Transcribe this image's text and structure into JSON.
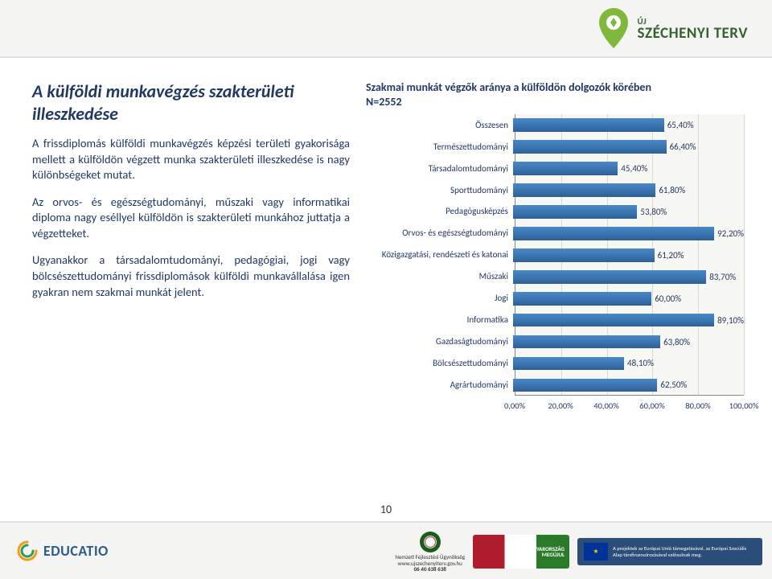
{
  "header": {
    "logo_uj": "ÚJ",
    "logo_main": "SZÉCHENYI TERV"
  },
  "left": {
    "title": "A külföldi munkavégzés szakterületi illeszkedése",
    "p1": "A frissdiplomás külföldi munkavégzés képzési területi gyakorisága mellett a külföldön végzett munka szakterületi illeszkedése is nagy különbségeket mutat.",
    "p2": "Az orvos- és egészségtudományi, műszaki vagy informatikai diploma nagy eséllyel külföldön is szakterületi munkához juttatja a végzetteket.",
    "p3": "Ugyanakkor a társadalomtudományi, pedagógiai, jogi vagy bölcsészettudományi frissdiplomások külföldi munkavállalása igen gyakran nem szakmai munkát jelent."
  },
  "chart": {
    "title_l1": "Szakmai munkát végzők aránya a külföldön dolgozók körében",
    "title_l2": "N=2552",
    "type": "bar-horizontal",
    "xlim": [
      0,
      100
    ],
    "xtick_step": 20,
    "xtick_labels": [
      "0,00%",
      "20,00%",
      "40,00%",
      "60,00%",
      "80,00%",
      "100,00%"
    ],
    "bar_color": "#3b76b3",
    "background_color": "#f7f7f3",
    "grid_color": "#d8d8d0",
    "text_color": "#203864",
    "label_fontsize": 11,
    "rows": [
      {
        "label": "Összesen",
        "value": 65.4,
        "text": "65,40%"
      },
      {
        "label": "Természettudományi",
        "value": 66.4,
        "text": "66,40%"
      },
      {
        "label": "Társadalomtudományi",
        "value": 45.4,
        "text": "45,40%"
      },
      {
        "label": "Sporttudományi",
        "value": 61.8,
        "text": "61,80%"
      },
      {
        "label": "Pedagógusképzés",
        "value": 53.8,
        "text": "53,80%"
      },
      {
        "label": "Orvos- és egészségtudományi",
        "value": 92.2,
        "text": "92,20%"
      },
      {
        "label": "Közigazgatási, rendészeti és katonai",
        "value": 61.2,
        "text": "61,20%"
      },
      {
        "label": "Műszaki",
        "value": 83.7,
        "text": "83,70%"
      },
      {
        "label": "Jogi",
        "value": 60.0,
        "text": "60,00%"
      },
      {
        "label": "Informatika",
        "value": 89.1,
        "text": "89,10%"
      },
      {
        "label": "Gazdaságtudományi",
        "value": 63.8,
        "text": "63,80%"
      },
      {
        "label": "Bölcsészettudományi",
        "value": 48.1,
        "text": "48,10%"
      },
      {
        "label": "Agrártudományi",
        "value": 62.5,
        "text": "62,50%"
      }
    ]
  },
  "footer": {
    "page_num": "10",
    "educatio": "EDUCATIO",
    "nfu_l1": "Nemzeti Fejlesztési Ügynökség",
    "nfu_l2": "www.ujszechenyiterv.gov.hu",
    "nfu_l3": "06 40 638 638",
    "mo_l1": "MAGYARORSZÁG",
    "mo_l2": "MEGÚJUL",
    "eu_text": "A projektek az Európai Unió támogatásával, az Európai Szociális Alap társfinanszírozásával valósulnak meg."
  }
}
